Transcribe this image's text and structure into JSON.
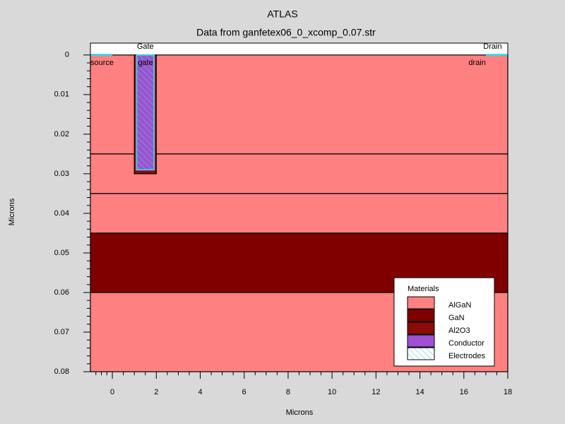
{
  "chart_data": {
    "type": "structure",
    "title": "ATLAS",
    "subtitle": "Data from ganfetex06_0_xcomp_0.07.str",
    "xlabel": "Microns",
    "ylabel": "Microns",
    "xlim": [
      -1,
      18
    ],
    "ylim": [
      -0.003,
      0.08
    ],
    "y_inverted": true,
    "xticks": [
      0,
      2,
      4,
      6,
      8,
      10,
      12,
      14,
      16,
      18
    ],
    "yticks": [
      0,
      0.01,
      0.02,
      0.03,
      0.04,
      0.05,
      0.06,
      0.07,
      0.08
    ],
    "regions": [
      {
        "material": "AlGaN",
        "x": [
          -1,
          18
        ],
        "y": [
          0,
          0.025
        ]
      },
      {
        "material": "AlGaN",
        "x": [
          -1,
          18
        ],
        "y": [
          0.025,
          0.035
        ]
      },
      {
        "material": "AlGaN",
        "x": [
          -1,
          18
        ],
        "y": [
          0.035,
          0.045
        ]
      },
      {
        "material": "GaN",
        "x": [
          -1,
          18
        ],
        "y": [
          0.045,
          0.06
        ]
      },
      {
        "material": "AlGaN",
        "x": [
          -1,
          18
        ],
        "y": [
          0.06,
          0.08
        ]
      },
      {
        "material": "Al2O3",
        "x": [
          1,
          2
        ],
        "y": [
          0,
          0.03
        ]
      },
      {
        "material": "Conductor",
        "x": [
          1.1,
          1.9
        ],
        "y": [
          0,
          0.029
        ]
      }
    ],
    "electrodes": [
      {
        "name": "source",
        "x": [
          -1,
          0
        ],
        "y": 0
      },
      {
        "name": "gate",
        "title": "Gate",
        "x": [
          1.1,
          1.9
        ],
        "y": [
          0,
          0.029
        ]
      },
      {
        "name": "drain",
        "title": "Drain",
        "x": [
          17,
          18
        ],
        "y": 0
      }
    ],
    "legend": {
      "title": "Materials",
      "position": "lower right",
      "items": [
        {
          "name": "AlGaN",
          "color": "#ff8080"
        },
        {
          "name": "GaN",
          "color": "#800000"
        },
        {
          "name": "Al2O3",
          "color": "#8b0a0a"
        },
        {
          "name": "Conductor",
          "color": "#a050d0"
        },
        {
          "name": "Electrodes",
          "color": "#40d0e0",
          "hatch": true
        }
      ]
    }
  }
}
